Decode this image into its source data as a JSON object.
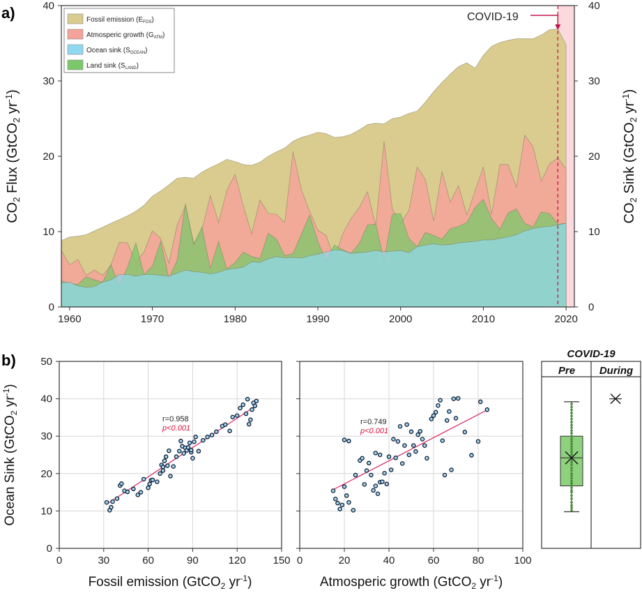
{
  "colors": {
    "fossil": "#d9cc8e",
    "atm": "#f4a39a",
    "ocean": "#8fd8ef",
    "land": "#7bc86a",
    "covid_line": "#c0154a",
    "covid_shade": "#fbd9dc",
    "regression": "#d8336b",
    "pval": "#d8103c",
    "marker": "#a5d8ef",
    "box_fill": "#8ed27e",
    "box_stroke": "#4a8a3c"
  },
  "panel_a": {
    "label": "a)",
    "ylabel_left": "CO2 Flux (GtCO2 yr-1)",
    "ylabel_right": "CO2 Sink (GtCO2 yr-1)",
    "annotation": "COVID-19",
    "legend": [
      {
        "key": "fossil",
        "text": "Fossil emission (E",
        "sub": "FOS",
        "end": ")"
      },
      {
        "key": "atm",
        "text": "Atmosperic growth (G",
        "sub": "ATM",
        "end": ")"
      },
      {
        "key": "ocean",
        "text": "Ocean sink (S",
        "sub": "OCEAN",
        "end": ")"
      },
      {
        "key": "land",
        "text": "Land sink (S",
        "sub": "LAND",
        "end": ")"
      }
    ]
  },
  "panel_b": {
    "label": "b)",
    "ylabel": "Ocean Sink (GtCO2 yr-1)",
    "left_xlabel": "Fossil emission (GtCO2 yr-1)",
    "mid_xlabel": "Atmosperic growth (GtCO2 yr-1)",
    "left_r": "r=0.958",
    "left_p": "p<0.001",
    "mid_r": "r=0.749",
    "mid_p": "p<0.001",
    "covid_title": "COVID-19",
    "pre_label": "Pre",
    "during_label": "During"
  },
  "chart_data": [
    {
      "type": "area",
      "x": [
        1959,
        1960,
        1961,
        1962,
        1963,
        1964,
        1965,
        1966,
        1967,
        1968,
        1969,
        1970,
        1971,
        1972,
        1973,
        1974,
        1975,
        1976,
        1977,
        1978,
        1979,
        1980,
        1981,
        1982,
        1983,
        1984,
        1985,
        1986,
        1987,
        1988,
        1989,
        1990,
        1991,
        1992,
        1993,
        1994,
        1995,
        1996,
        1997,
        1998,
        1999,
        2000,
        2001,
        2002,
        2003,
        2004,
        2005,
        2006,
        2007,
        2008,
        2009,
        2010,
        2011,
        2012,
        2013,
        2014,
        2015,
        2016,
        2017,
        2018,
        2019,
        2020
      ],
      "series": [
        {
          "name": "Fossil emission (EFOS)",
          "values": [
            8.8,
            9.3,
            9.4,
            9.6,
            10.1,
            10.6,
            11.1,
            11.6,
            12.1,
            12.7,
            13.5,
            14.7,
            15.4,
            16.2,
            17.1,
            17.2,
            17.1,
            17.9,
            18.5,
            19.0,
            19.6,
            19.3,
            18.9,
            18.8,
            19.2,
            20.0,
            20.6,
            21.1,
            22.0,
            22.5,
            22.8,
            23.2,
            23.0,
            22.5,
            22.6,
            22.9,
            23.5,
            24.2,
            24.4,
            24.3,
            25.0,
            25.2,
            25.7,
            26.0,
            27.2,
            28.6,
            29.8,
            30.9,
            31.9,
            32.4,
            31.7,
            33.4,
            34.6,
            35.1,
            35.4,
            35.6,
            35.6,
            35.6,
            36.1,
            36.8,
            36.9,
            34.8
          ]
        },
        {
          "name": "Atmosperic growth (GATM)",
          "values": [
            7.5,
            5.6,
            6.3,
            4.2,
            4.9,
            4.2,
            5.6,
            8.6,
            8.5,
            6.0,
            7.3,
            10.1,
            9.1,
            5.8,
            10.9,
            13.4,
            8.4,
            10.2,
            14.8,
            11.2,
            15.5,
            17.6,
            13.4,
            9.7,
            14.2,
            12.4,
            12.3,
            11.2,
            20.6,
            15.6,
            12.7,
            10.2,
            9.5,
            6.4,
            9.7,
            11.7,
            13.2,
            15.3,
            10.8,
            22.0,
            13.0,
            11.1,
            12.8,
            18.6,
            16.9,
            11.4,
            18.0,
            13.9,
            16.1,
            12.2,
            15.4,
            18.6,
            12.3,
            18.9,
            18.9,
            15.9,
            22.8,
            21.3,
            16.7,
            19.0,
            19.8,
            18.3
          ]
        },
        {
          "name": "Ocean sink (SOCEAN)",
          "values": [
            3.2,
            3.3,
            2.8,
            2.6,
            2.7,
            3.3,
            3.6,
            4.3,
            4.3,
            4.1,
            4.3,
            4.3,
            4.2,
            4.1,
            4.5,
            4.9,
            4.7,
            4.6,
            4.4,
            4.6,
            5.0,
            5.1,
            5.3,
            6.0,
            5.9,
            6.4,
            6.7,
            6.5,
            6.6,
            6.5,
            6.8,
            7.0,
            7.3,
            7.6,
            7.5,
            7.1,
            7.2,
            7.3,
            7.5,
            7.3,
            7.4,
            7.5,
            7.2,
            8.0,
            8.2,
            8.4,
            8.2,
            8.3,
            8.5,
            8.6,
            8.7,
            8.9,
            8.9,
            9.1,
            9.3,
            9.6,
            10.1,
            10.4,
            10.6,
            10.7,
            10.9,
            11.1
          ]
        },
        {
          "name": "Land sink (SLAND)",
          "values": [
            3.5,
            3.1,
            3.0,
            4.0,
            3.6,
            3.3,
            5.6,
            2.8,
            5.3,
            8.5,
            4.3,
            5.4,
            8.7,
            3.8,
            6.2,
            13.7,
            8.3,
            10.6,
            5.1,
            8.7,
            5.0,
            5.9,
            7.3,
            6.7,
            6.4,
            9.8,
            9.0,
            6.8,
            7.1,
            9.6,
            12.2,
            8.7,
            6.1,
            8.2,
            7.6,
            7.1,
            8.4,
            10.9,
            11.0,
            6.2,
            12.3,
            12.4,
            9.1,
            8.0,
            9.9,
            9.5,
            9.0,
            10.4,
            10.7,
            11.2,
            13.2,
            14.3,
            11.7,
            10.3,
            12.5,
            13.0,
            11.1,
            10.6,
            12.6,
            12.4,
            11.0,
            11.1
          ]
        }
      ],
      "ylim_left": [
        0,
        40
      ],
      "ylim_right": [
        0,
        40
      ],
      "xlim": [
        1959,
        2021
      ],
      "xticks": [
        1960,
        1970,
        1980,
        1990,
        2000,
        2010,
        2020
      ],
      "yticks": [
        0,
        10,
        20,
        30,
        40
      ],
      "covid_year": 2019
    },
    {
      "type": "scatter",
      "x": [
        32,
        34,
        35,
        36,
        39,
        41,
        42,
        44,
        46,
        50,
        53,
        55,
        57,
        60,
        61,
        62,
        63,
        66,
        68,
        69,
        70,
        70,
        71,
        72,
        73,
        74,
        75,
        77,
        79,
        81,
        82,
        83,
        84,
        85,
        86,
        87,
        88,
        89,
        89,
        90,
        91,
        92,
        94,
        97,
        100,
        103,
        106,
        110,
        112,
        115,
        117,
        120,
        122,
        124,
        126,
        127,
        128,
        129,
        130,
        131,
        132,
        133
      ],
      "y": [
        12.3,
        10.2,
        11.0,
        12.5,
        13.3,
        16.8,
        17.3,
        15.4,
        15.1,
        15.9,
        14.3,
        15.0,
        18.5,
        16.2,
        17.2,
        18.2,
        18.3,
        17.8,
        20.0,
        22.3,
        20.8,
        21.8,
        23.4,
        24.5,
        22.1,
        26.1,
        19.3,
        21.9,
        24.5,
        26.0,
        28.7,
        27.3,
        25.4,
        26.9,
        26.2,
        27.0,
        28.2,
        25.7,
        26.3,
        24.1,
        28.5,
        29.8,
        26.0,
        28.9,
        29.8,
        30.3,
        31.2,
        32.7,
        33.1,
        31.4,
        35.1,
        35.5,
        37.5,
        38.4,
        36.0,
        39.9,
        33.2,
        34.4,
        37.1,
        38.9,
        38.1,
        39.4
      ],
      "xlabel": "Fossil emission (GtCO2 yr-1)",
      "ylabel": "Ocean Sink (GtCO2 yr-1)",
      "xlim": [
        0,
        150
      ],
      "ylim": [
        0,
        50
      ],
      "xticks": [
        0,
        30,
        60,
        90,
        120,
        150
      ],
      "yticks": [
        0,
        10,
        20,
        30,
        40,
        50
      ],
      "regression": {
        "x": [
          32,
          133
        ],
        "y": [
          11.8,
          38.2
        ]
      },
      "annotations": [
        "r=0.958",
        "p<0.001"
      ]
    },
    {
      "type": "scatter",
      "x": [
        15,
        16,
        17,
        18,
        19,
        20,
        20,
        21,
        22,
        22,
        24,
        25,
        27,
        28,
        29,
        30,
        31,
        32,
        33,
        34,
        34,
        35,
        36,
        36,
        37,
        38,
        39,
        40,
        41,
        42,
        43,
        44,
        45,
        46,
        47,
        48,
        49,
        50,
        51,
        52,
        53,
        54,
        55,
        56,
        57,
        59,
        60,
        61,
        62,
        63,
        64,
        65,
        66,
        67,
        68,
        69,
        70,
        71,
        74,
        77,
        80,
        81,
        84
      ],
      "y": [
        15.4,
        13.2,
        12.1,
        10.5,
        11.6,
        16.5,
        29.0,
        14.1,
        12.3,
        28.7,
        10.2,
        19.6,
        23.5,
        24.1,
        17.1,
        20.8,
        22.8,
        19.6,
        15.5,
        16.7,
        25.5,
        14.6,
        17.7,
        25.0,
        17.8,
        20.1,
        17.2,
        24.5,
        21.0,
        29.2,
        24.2,
        28.6,
        32.6,
        22.7,
        27.5,
        33.1,
        25.0,
        31.2,
        27.5,
        25.9,
        30.4,
        31.3,
        29.2,
        27.5,
        24.1,
        34.6,
        35.5,
        36.4,
        38.2,
        39.6,
        28.8,
        19.6,
        34.2,
        36.6,
        21.0,
        40.0,
        34.8,
        40.1,
        31.1,
        24.9,
        28.6,
        39.2,
        37.1
      ],
      "xlabel": "Atmosperic growth (GtCO2 yr-1)",
      "xlim": [
        0,
        100
      ],
      "ylim": [
        0,
        50
      ],
      "xticks": [
        0,
        20,
        40,
        60,
        80,
        100
      ],
      "regression": {
        "x": [
          15,
          84
        ],
        "y": [
          15.7,
          37.0
        ]
      },
      "annotations": [
        "r=0.749",
        "p<0.001"
      ]
    },
    {
      "type": "box",
      "title": "COVID-19",
      "ylim": [
        0,
        50
      ],
      "categories": [
        "Pre",
        "During"
      ],
      "pre": {
        "min": 9.8,
        "q1": 16.7,
        "median": 24.2,
        "mean": 24.2,
        "q3": 30.0,
        "max": 39.2,
        "points": [
          10.2,
          10.9,
          11.5,
          12.3,
          13.3,
          14.1,
          15.0,
          15.5,
          16.2,
          16.8,
          17.4,
          18.0,
          18.7,
          19.4,
          20.0,
          20.8,
          21.5,
          22.3,
          23.0,
          23.7,
          24.4,
          25.1,
          25.8,
          26.5,
          27.2,
          27.9,
          28.6,
          29.3,
          30.0,
          30.8,
          31.5,
          32.3,
          33.0,
          33.8,
          34.6,
          35.4,
          36.2,
          37.0,
          37.8,
          38.6
        ]
      },
      "during": {
        "value": 40.0
      }
    }
  ]
}
